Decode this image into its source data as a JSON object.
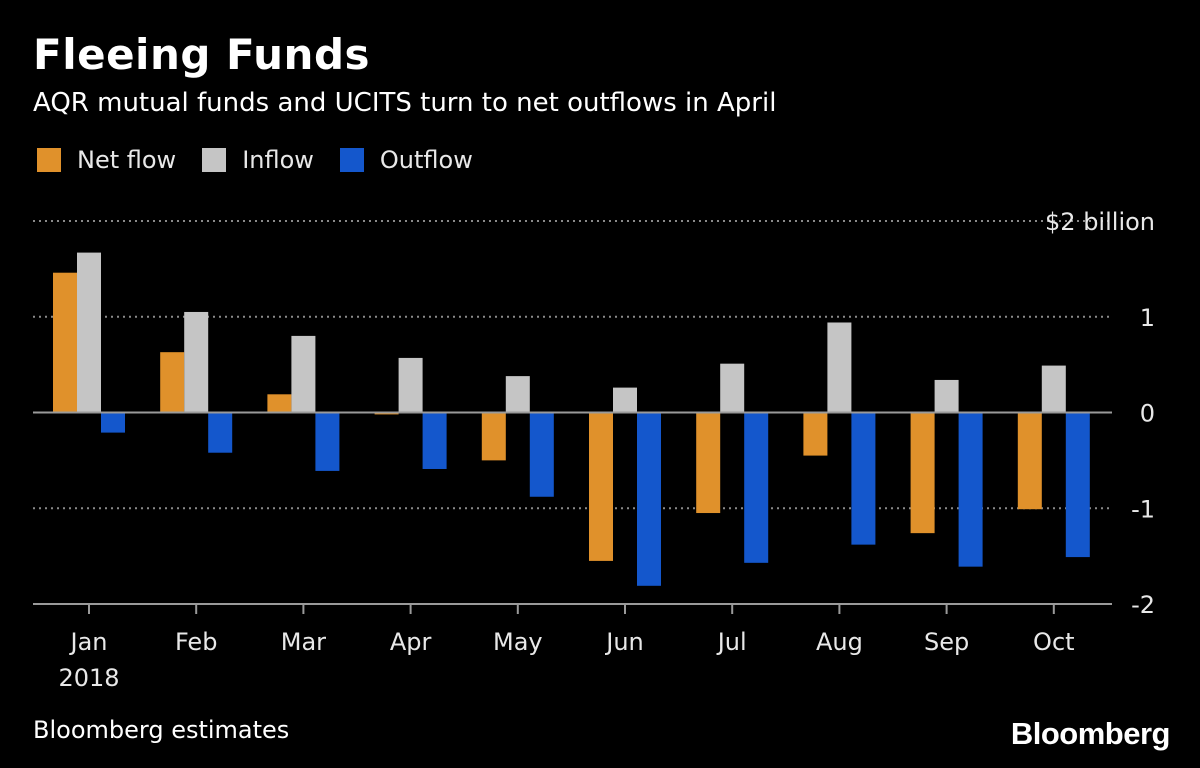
{
  "header": {
    "title": "Fleeing Funds",
    "subtitle": "AQR mutual funds and UCITS turn to net outflows in April"
  },
  "footer": {
    "source": "Bloomberg estimates",
    "brand": "Bloomberg"
  },
  "colors": {
    "background": "#000000",
    "net_flow": "#e0912b",
    "inflow": "#c5c5c5",
    "outflow": "#1457cc",
    "gridline": "#8a8a8a",
    "axis": "#9a9a9a"
  },
  "chart_data": {
    "type": "bar",
    "title": "Fleeing Funds",
    "subtitle": "AQR mutual funds and UCITS turn to net outflows in April",
    "categories": [
      "Jan",
      "Feb",
      "Mar",
      "Apr",
      "May",
      "Jun",
      "Jul",
      "Aug",
      "Sep",
      "Oct"
    ],
    "category_sublabels": [
      "2018",
      "",
      "",
      "",
      "",
      "",
      "",
      "",
      "",
      ""
    ],
    "series": [
      {
        "name": "Net flow",
        "key": "net_flow",
        "values": [
          1.46,
          0.63,
          0.19,
          -0.02,
          -0.5,
          -1.55,
          -1.05,
          -0.45,
          -1.26,
          -1.01
        ]
      },
      {
        "name": "Inflow",
        "key": "inflow",
        "values": [
          1.67,
          1.05,
          0.8,
          0.57,
          0.38,
          0.26,
          0.51,
          0.94,
          0.34,
          0.49
        ]
      },
      {
        "name": "Outflow",
        "key": "outflow",
        "values": [
          -0.21,
          -0.42,
          -0.61,
          -0.59,
          -0.88,
          -1.81,
          -1.57,
          -1.38,
          -1.61,
          -1.51
        ]
      }
    ],
    "y_ticks": [
      {
        "value": 2,
        "label": "$2 billion"
      },
      {
        "value": 1,
        "label": "1"
      },
      {
        "value": 0,
        "label": "0"
      },
      {
        "value": -1,
        "label": "-1"
      },
      {
        "value": -2,
        "label": "-2"
      }
    ],
    "ylim": [
      -2,
      2
    ],
    "xlabel": "",
    "ylabel": "",
    "grid": true,
    "legend_position": "top-left"
  }
}
